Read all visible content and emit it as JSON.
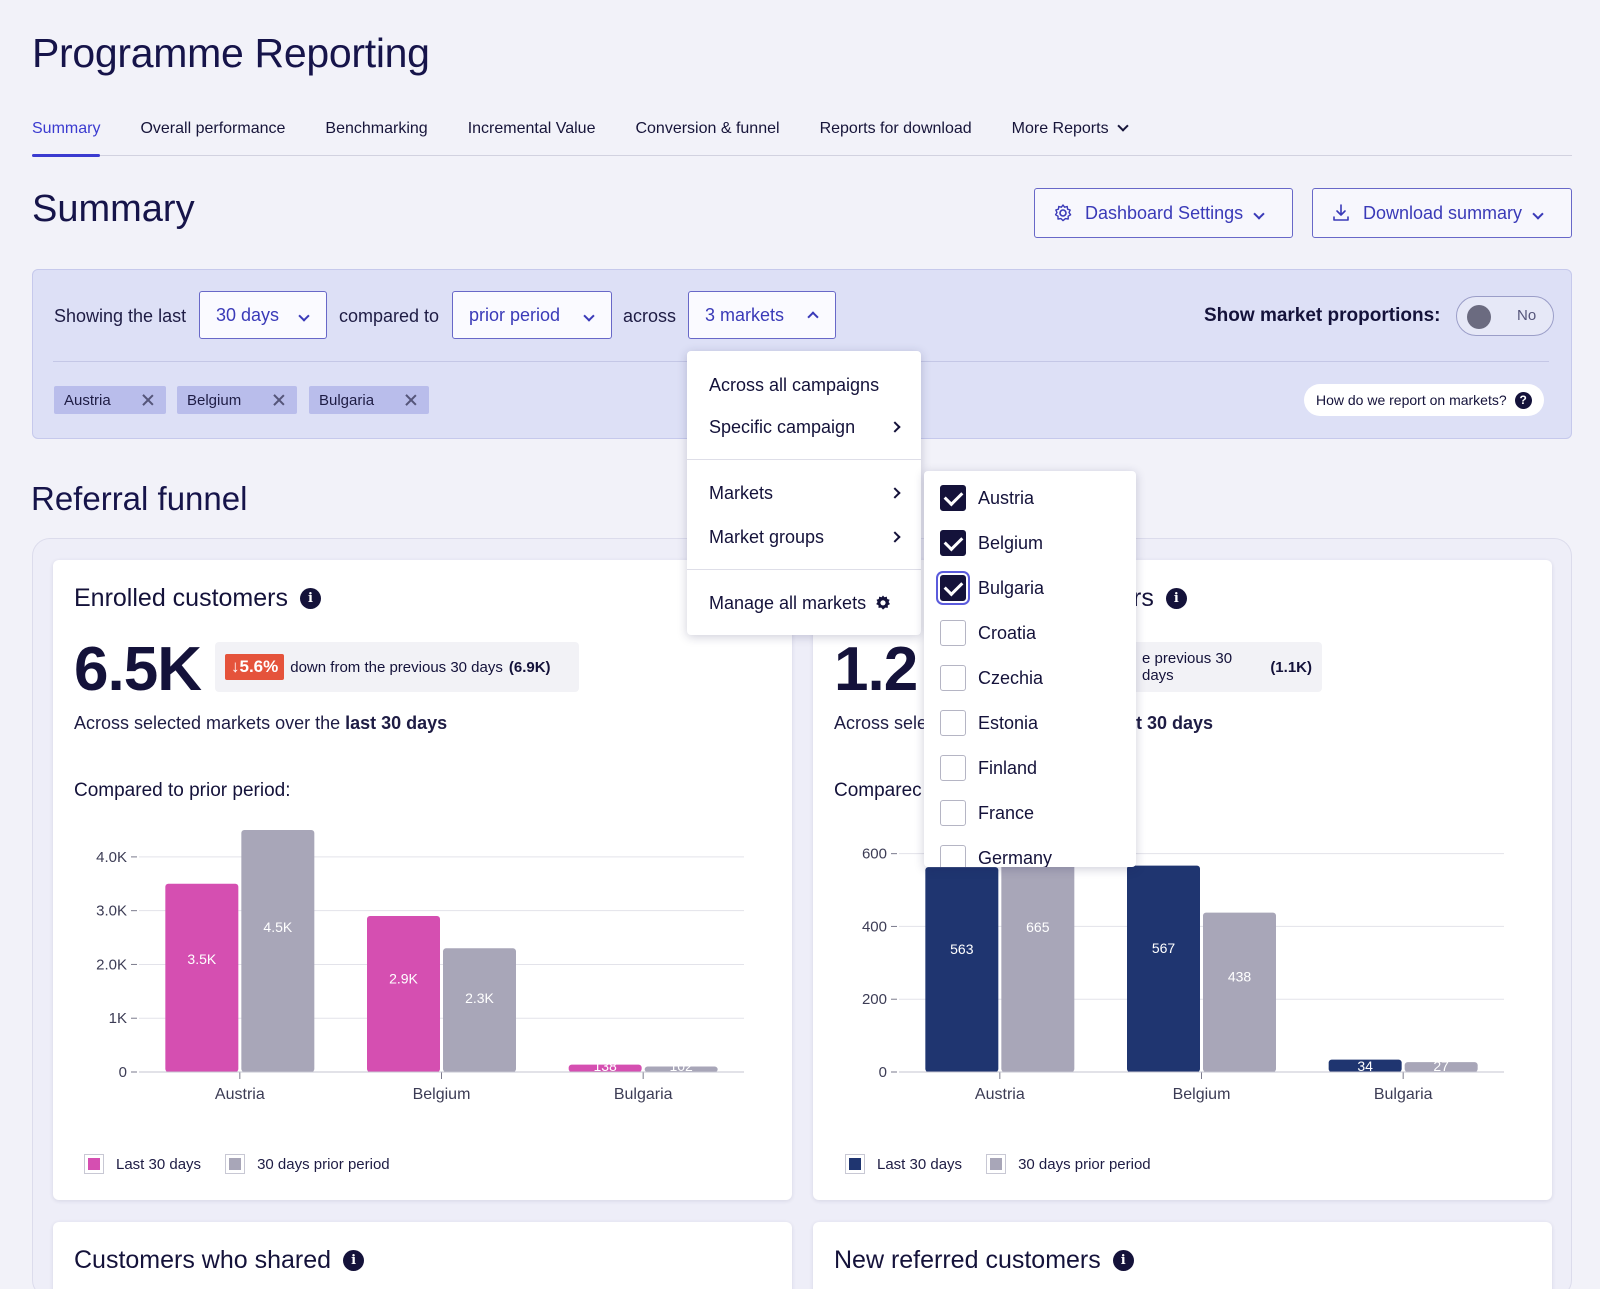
{
  "page_title": "Programme Reporting",
  "tabs": [
    {
      "label": "Summary",
      "active": true
    },
    {
      "label": "Overall performance"
    },
    {
      "label": "Benchmarking"
    },
    {
      "label": "Incremental Value"
    },
    {
      "label": "Conversion & funnel"
    },
    {
      "label": "Reports for download"
    },
    {
      "label": "More Reports"
    }
  ],
  "summary": {
    "title": "Summary",
    "dashboard_settings": "Dashboard Settings",
    "download_summary": "Download summary"
  },
  "filters": {
    "showing_label": "Showing the last",
    "period_value": "30 days",
    "compared_label": "compared to",
    "compare_value": "prior period",
    "across_label": "across",
    "markets_value": "3 markets",
    "chips": [
      "Austria",
      "Belgium",
      "Bulgaria"
    ],
    "proportions_label": "Show market proportions:",
    "toggle_value": "No",
    "help_text": "How do we report on markets?"
  },
  "scope_menu": {
    "items": [
      "Across all campaigns",
      "Specific campaign",
      "Markets",
      "Market groups",
      "Manage all markets"
    ]
  },
  "markets_menu": {
    "items": [
      {
        "label": "Austria",
        "checked": true
      },
      {
        "label": "Belgium",
        "checked": true
      },
      {
        "label": "Bulgaria",
        "checked": true
      },
      {
        "label": "Croatia",
        "checked": false
      },
      {
        "label": "Czechia",
        "checked": false
      },
      {
        "label": "Estonia",
        "checked": false
      },
      {
        "label": "Finland",
        "checked": false
      },
      {
        "label": "France",
        "checked": false
      },
      {
        "label": "Germany",
        "checked": false
      }
    ]
  },
  "referral_funnel": {
    "title": "Referral funnel",
    "enrolled": {
      "title": "Enrolled customers",
      "value": "6.5K",
      "delta": "↓5.6%",
      "delta_text": "down from the previous 30 days",
      "delta_prev": "(6.9K)",
      "sub_prefix": "Across selected markets over the",
      "sub_bold": "last 30 days",
      "compared": "Compared to prior period:"
    },
    "second": {
      "title_tail": "rs",
      "value": "1.2",
      "delta_text": "e previous 30 days",
      "delta_prev": "(1.1K)",
      "sub_prefix": "Across sele",
      "sub_bold": "t 30 days",
      "compared": "Comparec"
    },
    "legend": {
      "current": "Last 30 days",
      "prior": "30 days prior period"
    },
    "shared_title": "Customers who shared",
    "new_referred_title": "New referred customers"
  },
  "chart_data": [
    {
      "type": "bar",
      "categories": [
        "Austria",
        "Belgium",
        "Bulgaria"
      ],
      "series": [
        {
          "name": "Last 30 days",
          "values": [
            3500,
            2900,
            138
          ],
          "labels": [
            "3.5K",
            "2.9K",
            "138"
          ],
          "color": "#d54fb1"
        },
        {
          "name": "30 days prior period",
          "values": [
            4500,
            2300,
            102
          ],
          "labels": [
            "4.5K",
            "2.3K",
            "102"
          ],
          "color": "#a8a6b8"
        }
      ],
      "yticks": [
        0,
        1000,
        2000,
        3000,
        4000
      ],
      "ytick_labels": [
        "0",
        "1K",
        "2.0K",
        "3.0K",
        "4.0K"
      ],
      "ylim": [
        0,
        4500
      ],
      "grid": true,
      "legend": "bottom-left"
    },
    {
      "type": "bar",
      "categories": [
        "Austria",
        "Belgium",
        "Bulgaria"
      ],
      "series": [
        {
          "name": "Last 30 days",
          "values": [
            563,
            567,
            34
          ],
          "labels": [
            "563",
            "567",
            "34"
          ],
          "color": "#1f3570"
        },
        {
          "name": "30 days prior period",
          "values": [
            665,
            438,
            27
          ],
          "labels": [
            "665",
            "438",
            "27"
          ],
          "color": "#a8a6b8"
        }
      ],
      "yticks": [
        0,
        200,
        400,
        600
      ],
      "ytick_labels": [
        "0",
        "200",
        "400",
        "600"
      ],
      "ylim": [
        0,
        665
      ],
      "grid": true,
      "legend": "bottom-left"
    }
  ]
}
